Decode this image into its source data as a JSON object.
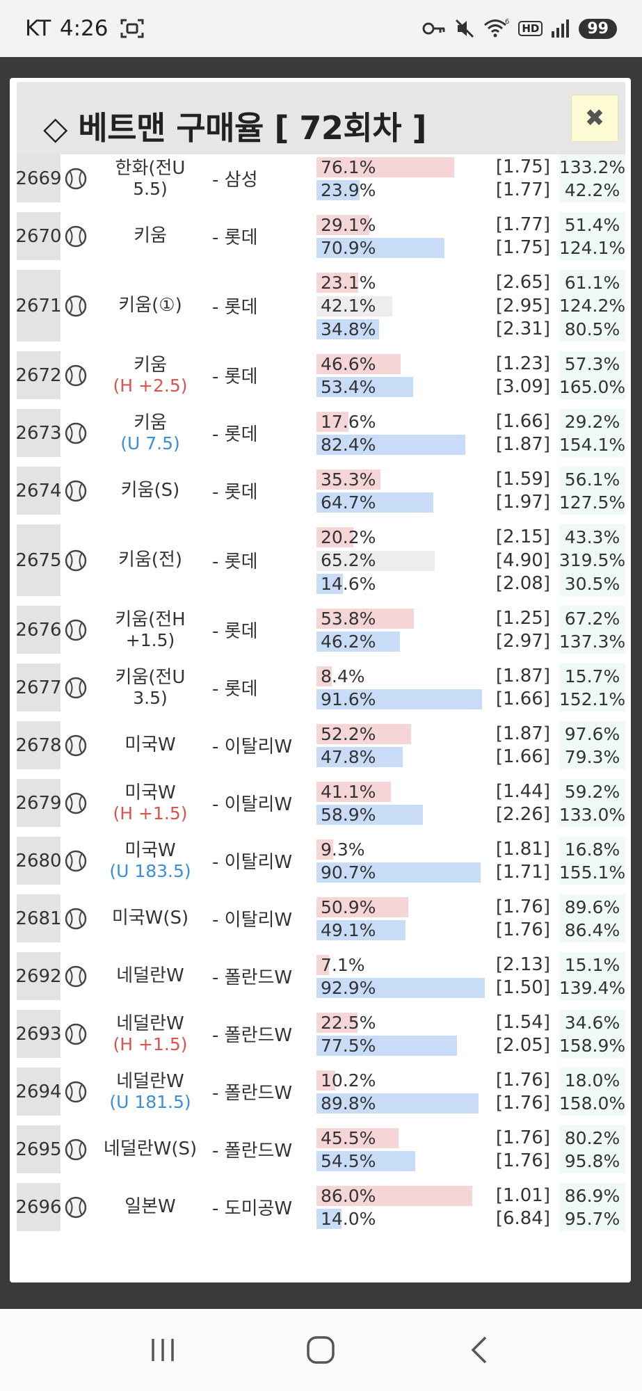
{
  "status_bar": {
    "carrier": "KT",
    "time": "4:26",
    "wifi_badge": "6",
    "hd_label": "HD",
    "battery": "99"
  },
  "modal": {
    "title": "◇ 베트맨 구매율 [ 72회차 ]",
    "close_label": "✖"
  },
  "rows": [
    {
      "num": "2669",
      "team": "한화(전U",
      "team_sub": "5.5)",
      "sub_color": "",
      "opp": "- 삼성",
      "lines": [
        {
          "pct": "76.1%",
          "odds": "[1.75]",
          "ret": "133.2%",
          "color": "red",
          "fill": 76.1
        },
        {
          "pct": "23.9%",
          "odds": "[1.77]",
          "ret": "42.2%",
          "color": "blue",
          "fill": 23.9
        }
      ]
    },
    {
      "num": "2670",
      "team": "키움",
      "team_sub": "",
      "sub_color": "",
      "opp": "- 롯데",
      "lines": [
        {
          "pct": "29.1%",
          "odds": "[1.77]",
          "ret": "51.4%",
          "color": "red",
          "fill": 29.1
        },
        {
          "pct": "70.9%",
          "odds": "[1.75]",
          "ret": "124.1%",
          "color": "blue",
          "fill": 70.9
        }
      ]
    },
    {
      "num": "2671",
      "team": "키움(①)",
      "team_sub": "",
      "sub_color": "",
      "opp": "- 롯데",
      "lines": [
        {
          "pct": "23.1%",
          "odds": "[2.65]",
          "ret": "61.1%",
          "color": "red",
          "fill": 23.1
        },
        {
          "pct": "42.1%",
          "odds": "[2.95]",
          "ret": "124.2%",
          "color": "gray",
          "fill": 42.1
        },
        {
          "pct": "34.8%",
          "odds": "[2.31]",
          "ret": "80.5%",
          "color": "blue",
          "fill": 34.8
        }
      ]
    },
    {
      "num": "2672",
      "team": "키움",
      "team_sub": "(H +2.5)",
      "sub_color": "red",
      "opp": "- 롯데",
      "lines": [
        {
          "pct": "46.6%",
          "odds": "[1.23]",
          "ret": "57.3%",
          "color": "red",
          "fill": 46.6
        },
        {
          "pct": "53.4%",
          "odds": "[3.09]",
          "ret": "165.0%",
          "color": "blue",
          "fill": 53.4
        }
      ]
    },
    {
      "num": "2673",
      "team": "키움",
      "team_sub": "(U 7.5)",
      "sub_color": "blue",
      "opp": "- 롯데",
      "lines": [
        {
          "pct": "17.6%",
          "odds": "[1.66]",
          "ret": "29.2%",
          "color": "red",
          "fill": 17.6
        },
        {
          "pct": "82.4%",
          "odds": "[1.87]",
          "ret": "154.1%",
          "color": "blue",
          "fill": 82.4
        }
      ]
    },
    {
      "num": "2674",
      "team": "키움(S)",
      "team_sub": "",
      "sub_color": "",
      "opp": "- 롯데",
      "lines": [
        {
          "pct": "35.3%",
          "odds": "[1.59]",
          "ret": "56.1%",
          "color": "red",
          "fill": 35.3
        },
        {
          "pct": "64.7%",
          "odds": "[1.97]",
          "ret": "127.5%",
          "color": "blue",
          "fill": 64.7
        }
      ]
    },
    {
      "num": "2675",
      "team": "키움(전)",
      "team_sub": "",
      "sub_color": "",
      "opp": "- 롯데",
      "lines": [
        {
          "pct": "20.2%",
          "odds": "[2.15]",
          "ret": "43.3%",
          "color": "red",
          "fill": 20.2
        },
        {
          "pct": "65.2%",
          "odds": "[4.90]",
          "ret": "319.5%",
          "color": "gray",
          "fill": 65.2
        },
        {
          "pct": "14.6%",
          "odds": "[2.08]",
          "ret": "30.5%",
          "color": "blue",
          "fill": 14.6
        }
      ]
    },
    {
      "num": "2676",
      "team": "키움(전H",
      "team_sub": "+1.5)",
      "sub_color": "",
      "opp": "- 롯데",
      "lines": [
        {
          "pct": "53.8%",
          "odds": "[1.25]",
          "ret": "67.2%",
          "color": "red",
          "fill": 53.8
        },
        {
          "pct": "46.2%",
          "odds": "[2.97]",
          "ret": "137.3%",
          "color": "blue",
          "fill": 46.2
        }
      ]
    },
    {
      "num": "2677",
      "team": "키움(전U",
      "team_sub": "3.5)",
      "sub_color": "",
      "opp": "- 롯데",
      "lines": [
        {
          "pct": "8.4%",
          "odds": "[1.87]",
          "ret": "15.7%",
          "color": "red",
          "fill": 8.4
        },
        {
          "pct": "91.6%",
          "odds": "[1.66]",
          "ret": "152.1%",
          "color": "blue",
          "fill": 91.6
        }
      ]
    },
    {
      "num": "2678",
      "team": "미국W",
      "team_sub": "",
      "sub_color": "",
      "opp": "- 이탈리W",
      "lines": [
        {
          "pct": "52.2%",
          "odds": "[1.87]",
          "ret": "97.6%",
          "color": "red",
          "fill": 52.2
        },
        {
          "pct": "47.8%",
          "odds": "[1.66]",
          "ret": "79.3%",
          "color": "blue",
          "fill": 47.8
        }
      ]
    },
    {
      "num": "2679",
      "team": "미국W",
      "team_sub": "(H +1.5)",
      "sub_color": "red",
      "opp": "- 이탈리W",
      "lines": [
        {
          "pct": "41.1%",
          "odds": "[1.44]",
          "ret": "59.2%",
          "color": "red",
          "fill": 41.1
        },
        {
          "pct": "58.9%",
          "odds": "[2.26]",
          "ret": "133.0%",
          "color": "blue",
          "fill": 58.9
        }
      ]
    },
    {
      "num": "2680",
      "team": "미국W",
      "team_sub": "(U 183.5)",
      "sub_color": "blue",
      "opp": "- 이탈리W",
      "lines": [
        {
          "pct": "9.3%",
          "odds": "[1.81]",
          "ret": "16.8%",
          "color": "red",
          "fill": 9.3
        },
        {
          "pct": "90.7%",
          "odds": "[1.71]",
          "ret": "155.1%",
          "color": "blue",
          "fill": 90.7
        }
      ]
    },
    {
      "num": "2681",
      "team": "미국W(S)",
      "team_sub": "",
      "sub_color": "",
      "opp": "- 이탈리W",
      "lines": [
        {
          "pct": "50.9%",
          "odds": "[1.76]",
          "ret": "89.6%",
          "color": "red",
          "fill": 50.9
        },
        {
          "pct": "49.1%",
          "odds": "[1.76]",
          "ret": "86.4%",
          "color": "blue",
          "fill": 49.1
        }
      ]
    },
    {
      "num": "2692",
      "team": "네덜란W",
      "team_sub": "",
      "sub_color": "",
      "opp": "- 폴란드W",
      "lines": [
        {
          "pct": "7.1%",
          "odds": "[2.13]",
          "ret": "15.1%",
          "color": "red",
          "fill": 7.1
        },
        {
          "pct": "92.9%",
          "odds": "[1.50]",
          "ret": "139.4%",
          "color": "blue",
          "fill": 92.9
        }
      ]
    },
    {
      "num": "2693",
      "team": "네덜란W",
      "team_sub": "(H +1.5)",
      "sub_color": "red",
      "opp": "- 폴란드W",
      "lines": [
        {
          "pct": "22.5%",
          "odds": "[1.54]",
          "ret": "34.6%",
          "color": "red",
          "fill": 22.5
        },
        {
          "pct": "77.5%",
          "odds": "[2.05]",
          "ret": "158.9%",
          "color": "blue",
          "fill": 77.5
        }
      ]
    },
    {
      "num": "2694",
      "team": "네덜란W",
      "team_sub": "(U 181.5)",
      "sub_color": "blue",
      "opp": "- 폴란드W",
      "lines": [
        {
          "pct": "10.2%",
          "odds": "[1.76]",
          "ret": "18.0%",
          "color": "red",
          "fill": 10.2
        },
        {
          "pct": "89.8%",
          "odds": "[1.76]",
          "ret": "158.0%",
          "color": "blue",
          "fill": 89.8
        }
      ]
    },
    {
      "num": "2695",
      "team": "네덜란W(S)",
      "team_sub": "",
      "sub_color": "",
      "opp": "- 폴란드W",
      "lines": [
        {
          "pct": "45.5%",
          "odds": "[1.76]",
          "ret": "80.2%",
          "color": "red",
          "fill": 45.5
        },
        {
          "pct": "54.5%",
          "odds": "[1.76]",
          "ret": "95.8%",
          "color": "blue",
          "fill": 54.5
        }
      ]
    },
    {
      "num": "2696",
      "team": "일본W",
      "team_sub": "",
      "sub_color": "",
      "opp": "- 도미공W",
      "lines": [
        {
          "pct": "86.0%",
          "odds": "[1.01]",
          "ret": "86.9%",
          "color": "red",
          "fill": 86.0
        },
        {
          "pct": "14.0%",
          "odds": "[6.84]",
          "ret": "95.7%",
          "color": "blue",
          "fill": 14.0
        }
      ]
    }
  ]
}
